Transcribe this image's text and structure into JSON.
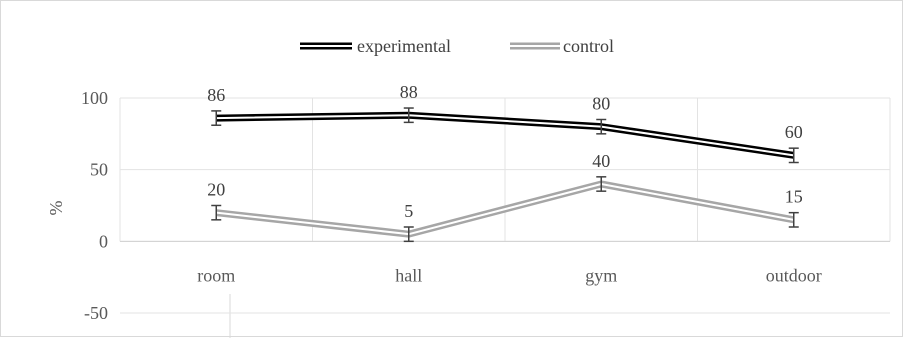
{
  "chart_data": {
    "type": "line",
    "categories": [
      "room",
      "hall",
      "gym",
      "outdoor"
    ],
    "ylabel": "%",
    "ylim": [
      -50,
      100
    ],
    "yticks": [
      100,
      50,
      0,
      -50
    ],
    "grid": true,
    "legend": "top",
    "error_bar": 5,
    "series": [
      {
        "name": "experimental",
        "values": [
          86,
          88,
          80,
          60
        ],
        "color": "#000000",
        "labels": [
          "86",
          "88",
          "80",
          "60"
        ]
      },
      {
        "name": "control",
        "values": [
          20,
          5,
          40,
          15
        ],
        "color": "#a6a6a6",
        "labels": [
          "20",
          "5",
          "40",
          "15"
        ]
      }
    ]
  }
}
